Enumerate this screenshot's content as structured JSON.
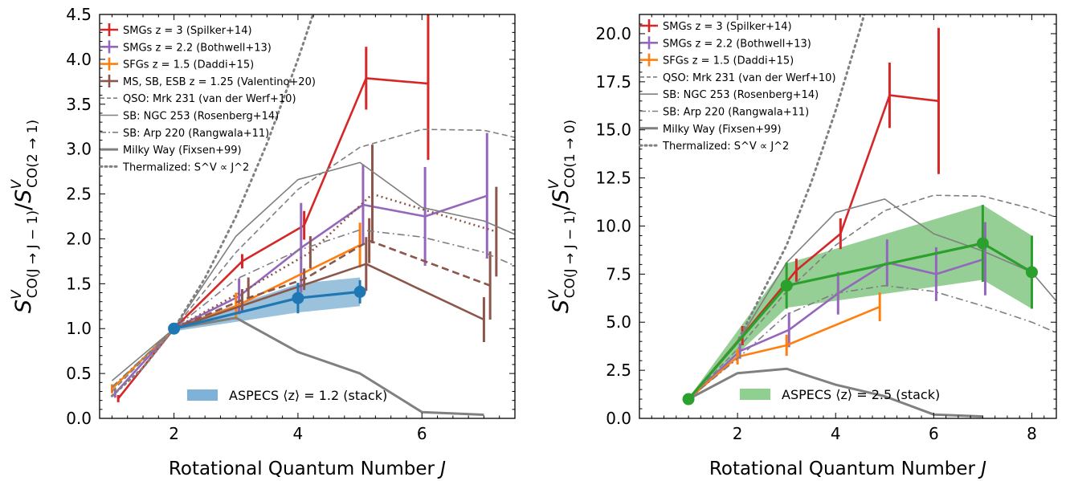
{
  "chart_data": [
    {
      "type": "line",
      "xlabel": "Rotational Quantum Number J",
      "ylabel_html": "S^V_CO(J→J−1) / S^V_CO(2→1)",
      "ylabel_parts": {
        "main": "S",
        "sup": "V",
        "sub": "CO(J → J − 1)",
        "slash": "/",
        "main2": "S",
        "sup2": "V",
        "sub2": "CO(2 → 1)"
      },
      "xlim": [
        0.8,
        7.5
      ],
      "ylim": [
        0,
        4.5
      ],
      "xticks": [
        2,
        4,
        6
      ],
      "yticks": [
        0.0,
        0.5,
        1.0,
        1.5,
        2.0,
        2.5,
        3.0,
        3.5,
        4.0,
        4.5
      ],
      "ytick_labels": [
        "0.0",
        "0.5",
        "1.0",
        "1.5",
        "2.0",
        "2.5",
        "3.0",
        "3.5",
        "4.0",
        "4.5"
      ],
      "xtick_labels": [
        "2",
        "4",
        "6"
      ],
      "legend": [
        {
          "label": "SMGs z = 3 (Spilker+14)",
          "color": "#d62728",
          "style": "err"
        },
        {
          "label": "SMGs z = 2.2 (Bothwell+13)",
          "color": "#9467bd",
          "style": "err"
        },
        {
          "label": "SFGs z = 1.5 (Daddi+15)",
          "color": "#ff7f0e",
          "style": "err"
        },
        {
          "label": "MS, SB, ESB z = 1.25 (Valentino+20)",
          "color": "#8c564b",
          "style": "err"
        },
        {
          "label": "QSO: Mrk 231 (van der Werf+10)",
          "color": "#7f7f7f",
          "style": "dashed"
        },
        {
          "label": "SB: NGC 253 (Rosenberg+14)",
          "color": "#7f7f7f",
          "style": "solid"
        },
        {
          "label": "SB: Arp 220 (Rangwala+11)",
          "color": "#7f7f7f",
          "style": "dashdot"
        },
        {
          "label": "Milky Way (Fixsen+99)",
          "color": "#7f7f7f",
          "style": "thick"
        },
        {
          "label": "Thermalized: S^V ∝ J^2",
          "color": "#7f7f7f",
          "style": "dotted"
        }
      ],
      "band_legend": {
        "label": "ASPECS ⟨z⟩ = 1.2 (stack)",
        "color": "#7fb2d9"
      },
      "series": [
        {
          "name": "SMGs z = 3 (Spilker+14)",
          "color": "#d62728",
          "width": 2.6,
          "dash": "",
          "x": [
            1.1,
            2,
            3.1,
            4.1,
            5.1,
            6.1
          ],
          "y": [
            0.22,
            1.0,
            1.75,
            2.15,
            3.79,
            3.73
          ],
          "err": [
            0.04,
            0.03,
            0.08,
            0.16,
            0.35,
            0.85
          ]
        },
        {
          "name": "SMGs z = 2.2 (Bothwell+13)",
          "color": "#9467bd",
          "width": 2.6,
          "dash": "",
          "x": [
            1.05,
            2,
            3.05,
            4.05,
            5.05,
            6.05,
            7.05
          ],
          "y": [
            0.28,
            1.0,
            1.36,
            1.9,
            2.38,
            2.25,
            2.48
          ],
          "err": [
            0.05,
            0.03,
            0.2,
            0.5,
            0.45,
            0.55,
            0.7
          ]
        },
        {
          "name": "SFGs z = 1.5 (Daddi+15)",
          "color": "#ff7f0e",
          "width": 2.6,
          "dash": "",
          "x": [
            1.0,
            2,
            3.0,
            5.0
          ],
          "y": [
            0.33,
            1.0,
            1.25,
            1.93
          ],
          "err": [
            0.05,
            0.03,
            0.15,
            0.25
          ]
        },
        {
          "name": "MS",
          "color": "#8c564b",
          "width": 2.6,
          "dash": "",
          "x": [
            2,
            5.1,
            7.0
          ],
          "y": [
            1.0,
            1.72,
            1.1
          ],
          "err": [
            0.0,
            0.3,
            0.25
          ]
        },
        {
          "name": "SB",
          "color": "#8c564b",
          "width": 2.6,
          "dash": "9,5",
          "x": [
            2,
            3.1,
            4.1,
            5.15,
            7.1
          ],
          "y": [
            1.0,
            1.32,
            1.55,
            1.98,
            1.48
          ],
          "err": [
            0.0,
            0.12,
            0.12,
            0.25,
            0.38
          ]
        },
        {
          "name": "ESB",
          "color": "#8c564b",
          "width": 2.6,
          "dash": "2,4",
          "x": [
            2,
            3.2,
            4.2,
            5.2,
            7.2
          ],
          "y": [
            1.0,
            1.45,
            1.85,
            2.5,
            2.08
          ],
          "err": [
            0.0,
            0.12,
            0.18,
            0.55,
            0.5
          ]
        },
        {
          "name": "QSO: Mrk 231 (van der Werf+10)",
          "color": "#7f7f7f",
          "width": 1.6,
          "dash": "7,4",
          "x": [
            1,
            2,
            3,
            4,
            5,
            6,
            7,
            8
          ],
          "y": [
            0.3,
            1.0,
            1.85,
            2.55,
            3.02,
            3.22,
            3.21,
            3.05
          ],
          "err": []
        },
        {
          "name": "SB: NGC 253 (Rosenberg+14)",
          "color": "#7f7f7f",
          "width": 1.6,
          "dash": "",
          "x": [
            1,
            2,
            3,
            4,
            5,
            6,
            7,
            8
          ],
          "y": [
            0.42,
            1.0,
            2.03,
            2.66,
            2.85,
            2.35,
            2.2,
            1.9
          ],
          "err": []
        },
        {
          "name": "SB: Arp 220 (Rangwala+11)",
          "color": "#7f7f7f",
          "width": 1.6,
          "dash": "9,4,2,4",
          "x": [
            1,
            2,
            3,
            4,
            5,
            6,
            7,
            8
          ],
          "y": [
            0.35,
            1.0,
            1.55,
            1.87,
            2.1,
            2.02,
            1.85,
            1.55
          ],
          "err": []
        },
        {
          "name": "Milky Way (Fixsen+99)",
          "color": "#808080",
          "width": 3.0,
          "dash": "",
          "x": [
            2,
            3,
            4,
            5,
            6,
            7
          ],
          "y": [
            1.0,
            1.12,
            0.74,
            0.5,
            0.07,
            0.04
          ],
          "err": []
        },
        {
          "name": "Thermalized",
          "color": "#808080",
          "width": 3.0,
          "dash": "2,5",
          "x": [
            1,
            1.5,
            2,
            2.5,
            3,
            3.5,
            4,
            4.25
          ],
          "y": [
            0.25,
            0.5625,
            1.0,
            1.5625,
            2.25,
            3.0625,
            4.0,
            4.5156
          ],
          "err": []
        },
        {
          "name": "ASPECS",
          "color": "#1f77b4",
          "width": 3.2,
          "dash": "",
          "x": [
            2,
            4,
            5
          ],
          "y": [
            1.0,
            1.34,
            1.41
          ],
          "err": [
            0.0,
            0.17,
            0.13
          ],
          "markers": true
        }
      ],
      "band": {
        "color": "#1f77b4",
        "opacity": 0.45,
        "x": [
          2,
          4,
          5
        ],
        "lo": [
          0.97,
          1.18,
          1.25
        ],
        "hi": [
          1.03,
          1.5,
          1.57
        ]
      }
    },
    {
      "type": "line",
      "xlabel": "Rotational Quantum Number J",
      "ylabel_html": "S^V_CO(J→J−1) / S^V_CO(1→0)",
      "ylabel_parts": {
        "main": "S",
        "sup": "V",
        "sub": "CO(J → J − 1)",
        "slash": "/",
        "main2": "S",
        "sup2": "V",
        "sub2": "CO(1 → 0)"
      },
      "xlim": [
        0.0,
        8.5
      ],
      "ylim": [
        0,
        21
      ],
      "xticks": [
        2,
        4,
        6,
        8
      ],
      "yticks": [
        0.0,
        2.5,
        5.0,
        7.5,
        10.0,
        12.5,
        15.0,
        17.5,
        20.0
      ],
      "ytick_labels": [
        "0.0",
        "2.5",
        "5.0",
        "7.5",
        "10.0",
        "12.5",
        "15.0",
        "17.5",
        "20.0"
      ],
      "xtick_labels": [
        "2",
        "4",
        "6",
        "8"
      ],
      "legend": [
        {
          "label": "SMGs z = 3 (Spilker+14)",
          "color": "#d62728",
          "style": "err"
        },
        {
          "label": "SMGs z = 2.2 (Bothwell+13)",
          "color": "#9467bd",
          "style": "err"
        },
        {
          "label": "SFGs z = 1.5 (Daddi+15)",
          "color": "#ff7f0e",
          "style": "err"
        },
        {
          "label": "QSO: Mrk 231 (van der Werf+10)",
          "color": "#7f7f7f",
          "style": "dashed"
        },
        {
          "label": "SB: NGC 253 (Rosenberg+14)",
          "color": "#7f7f7f",
          "style": "solid"
        },
        {
          "label": "SB: Arp 220 (Rangwala+11)",
          "color": "#7f7f7f",
          "style": "dashdot"
        },
        {
          "label": "Milky Way (Fixsen+99)",
          "color": "#7f7f7f",
          "style": "thick"
        },
        {
          "label": "Thermalized: S^V ∝ J^2",
          "color": "#7f7f7f",
          "style": "dotted"
        }
      ],
      "band_legend": {
        "label": "ASPECS ⟨z⟩ = 2.5 (stack)",
        "color": "#8fcf8f"
      },
      "series": [
        {
          "name": "SMGs z = 3 (Spilker+14)",
          "color": "#d62728",
          "width": 2.6,
          "dash": "",
          "x": [
            1.0,
            2.1,
            3.2,
            4.1,
            5.1,
            6.1
          ],
          "y": [
            1.0,
            4.3,
            7.7,
            9.6,
            16.8,
            16.5
          ],
          "err": [
            0.0,
            0.5,
            0.6,
            0.8,
            1.7,
            3.8
          ]
        },
        {
          "name": "SMGs z = 2.2 (Bothwell+13)",
          "color": "#9467bd",
          "width": 2.6,
          "dash": "",
          "x": [
            1.0,
            2.05,
            3.05,
            4.05,
            5.05,
            6.05,
            7.05
          ],
          "y": [
            1.0,
            3.5,
            4.6,
            6.5,
            8.1,
            7.5,
            8.3
          ],
          "err": [
            0.0,
            0.4,
            0.9,
            1.1,
            1.2,
            1.4,
            1.9
          ]
        },
        {
          "name": "SFGs z = 1.5 (Daddi+15)",
          "color": "#ff7f0e",
          "width": 2.6,
          "dash": "",
          "x": [
            1.0,
            2.0,
            3.0,
            4.9
          ],
          "y": [
            1.0,
            3.2,
            3.8,
            5.8
          ],
          "err": [
            0.0,
            0.4,
            0.55,
            0.75
          ]
        },
        {
          "name": "QSO: Mrk 231 (van der Werf+10)",
          "color": "#7f7f7f",
          "width": 1.6,
          "dash": "7,4",
          "x": [
            1,
            2,
            3,
            4,
            5,
            6,
            7,
            8,
            9
          ],
          "y": [
            1.0,
            3.6,
            6.6,
            9.0,
            10.8,
            11.6,
            11.55,
            10.9,
            10.0
          ],
          "err": []
        },
        {
          "name": "SB: NGC 253 (Rosenberg+14)",
          "color": "#7f7f7f",
          "width": 1.6,
          "dash": "",
          "x": [
            1,
            2,
            3,
            4,
            5,
            6,
            7,
            8,
            9
          ],
          "y": [
            1.0,
            3.95,
            8.1,
            10.7,
            11.4,
            9.6,
            8.7,
            7.6,
            4.6
          ],
          "err": []
        },
        {
          "name": "SB: Arp 220 (Rangwala+11)",
          "color": "#7f7f7f",
          "width": 1.6,
          "dash": "9,4,2,4",
          "x": [
            1,
            2,
            3,
            4,
            5,
            6,
            7,
            8,
            9
          ],
          "y": [
            1.0,
            3.1,
            5.4,
            6.5,
            6.9,
            6.6,
            5.85,
            5.0,
            3.9
          ],
          "err": []
        },
        {
          "name": "Milky Way (Fixsen+99)",
          "color": "#808080",
          "width": 3.0,
          "dash": "",
          "x": [
            1,
            2,
            3,
            4,
            5,
            6,
            7
          ],
          "y": [
            1.0,
            2.35,
            2.58,
            1.75,
            1.15,
            0.2,
            0.1
          ],
          "err": []
        },
        {
          "name": "Thermalized",
          "color": "#808080",
          "width": 3.0,
          "dash": "2,5",
          "x": [
            1,
            2,
            3,
            3.5,
            4,
            4.5,
            4.6
          ],
          "y": [
            1.0,
            4.0,
            9.0,
            12.25,
            16.0,
            20.25,
            21.16
          ],
          "err": []
        },
        {
          "name": "ASPECS",
          "color": "#2ca02c",
          "width": 3.2,
          "dash": "",
          "x": [
            1,
            3,
            7,
            8
          ],
          "y": [
            1.0,
            6.9,
            9.1,
            7.6
          ],
          "err": [
            0.0,
            1.2,
            2.0,
            1.9
          ],
          "markers": true
        }
      ],
      "band": {
        "color": "#2ca02c",
        "opacity": 0.5,
        "x": [
          1,
          3,
          7,
          8
        ],
        "lo": [
          0.95,
          5.75,
          7.2,
          5.7
        ],
        "hi": [
          1.05,
          8.05,
          11.1,
          9.5
        ]
      }
    }
  ]
}
